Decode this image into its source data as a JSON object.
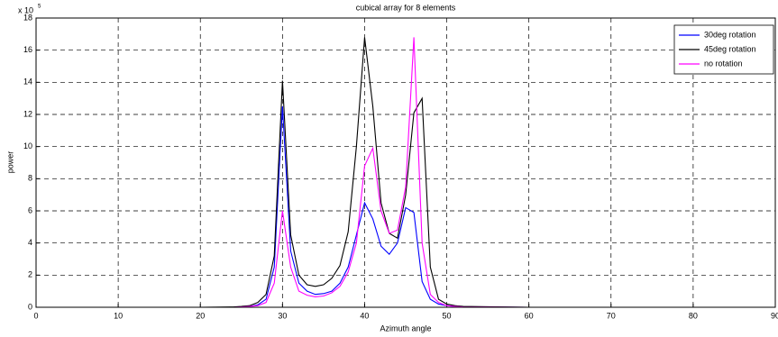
{
  "chart_data": {
    "type": "line",
    "title": "cubical array for 8 elements",
    "x_label": "Azimuth angle",
    "y_label": "power",
    "y_multiplier": {
      "base": "x 10",
      "exponent": "5"
    },
    "x": [
      0,
      20,
      24,
      25,
      26,
      27,
      28,
      29,
      30,
      31,
      32,
      33,
      34,
      35,
      36,
      37,
      38,
      39,
      40,
      41,
      42,
      43,
      44,
      45,
      46,
      47,
      48,
      49,
      50,
      51,
      52,
      60,
      70,
      80,
      90
    ],
    "series": [
      {
        "name": "30deg rotation",
        "color": "#0000ff",
        "values": [
          0,
          0,
          0,
          0.02,
          0.05,
          0.15,
          0.5,
          2.5,
          12.5,
          3.5,
          1.5,
          1.0,
          0.8,
          0.85,
          1.0,
          1.5,
          2.5,
          4.5,
          6.5,
          5.5,
          3.8,
          3.3,
          4.0,
          6.2,
          5.9,
          1.6,
          0.5,
          0.2,
          0.1,
          0.05,
          0.02,
          0,
          0,
          0,
          0
        ]
      },
      {
        "name": "45deg rotation",
        "color": "#000000",
        "values": [
          0,
          0,
          0.02,
          0.05,
          0.1,
          0.3,
          0.8,
          3.2,
          14.1,
          4.5,
          2.0,
          1.4,
          1.3,
          1.4,
          1.8,
          2.6,
          4.7,
          10,
          16.8,
          12.5,
          6.5,
          4.6,
          4.3,
          7,
          12.1,
          13,
          2.5,
          0.5,
          0.2,
          0.1,
          0.05,
          0,
          0,
          0,
          0
        ]
      },
      {
        "name": "no rotation",
        "color": "#ff00ff",
        "values": [
          0,
          0,
          0,
          0.02,
          0.05,
          0.1,
          0.3,
          1.5,
          6,
          2.5,
          1.0,
          0.75,
          0.65,
          0.7,
          0.9,
          1.3,
          2.2,
          4,
          8.8,
          9.9,
          6,
          4.6,
          4.8,
          7.5,
          16.8,
          4,
          0.8,
          0.3,
          0.1,
          0.05,
          0.02,
          0,
          0,
          0,
          0
        ]
      }
    ],
    "xlim": [
      0,
      90
    ],
    "xticks": [
      0,
      10,
      20,
      30,
      40,
      50,
      60,
      70,
      80,
      90
    ],
    "ylim": [
      0,
      18
    ],
    "yticks": [
      0,
      2,
      4,
      6,
      8,
      10,
      12,
      14,
      16,
      18
    ],
    "grid": true,
    "legend": "top-right"
  }
}
